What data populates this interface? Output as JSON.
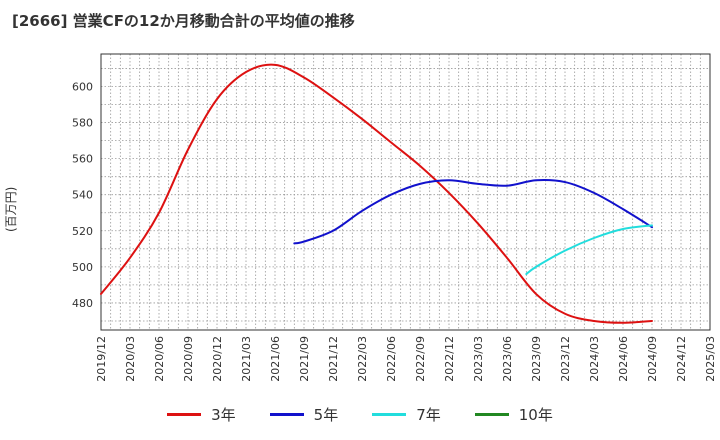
{
  "chart_data": {
    "type": "line",
    "title": "[2666]  営業CFの12か月移動合計の平均値の推移",
    "xlabel": "",
    "ylabel": "(百万円)",
    "x_ticks": [
      "2019/12",
      "2020/03",
      "2020/06",
      "2020/09",
      "2020/12",
      "2021/03",
      "2021/06",
      "2021/09",
      "2021/12",
      "2022/03",
      "2022/06",
      "2022/09",
      "2022/12",
      "2023/03",
      "2023/06",
      "2023/09",
      "2023/12",
      "2024/03",
      "2024/06",
      "2024/09",
      "2024/12",
      "2025/03"
    ],
    "y_ticks": [
      480,
      500,
      520,
      540,
      560,
      580,
      600
    ],
    "ylim": [
      465,
      618
    ],
    "grid": true,
    "legend_position": "bottom",
    "series": [
      {
        "name": "3年",
        "color": "#dd1111",
        "x": [
          "2019/12",
          "2020/03",
          "2020/06",
          "2020/09",
          "2020/12",
          "2021/03",
          "2021/06",
          "2021/09",
          "2021/12",
          "2022/03",
          "2022/06",
          "2022/09",
          "2022/12",
          "2023/03",
          "2023/06",
          "2023/09",
          "2023/12",
          "2024/03",
          "2024/06",
          "2024/09"
        ],
        "values": [
          485,
          505,
          530,
          565,
          593,
          608,
          612,
          605,
          594,
          582,
          569,
          556,
          541,
          524,
          505,
          485,
          474,
          470,
          469,
          470
        ]
      },
      {
        "name": "5年",
        "color": "#1111cc",
        "x": [
          "2021/08",
          "2021/09",
          "2021/12",
          "2022/03",
          "2022/06",
          "2022/09",
          "2022/12",
          "2023/03",
          "2023/06",
          "2023/09",
          "2023/12",
          "2024/03",
          "2024/06",
          "2024/09"
        ],
        "values": [
          513,
          514,
          520,
          531,
          540,
          546,
          548,
          546,
          545,
          548,
          547,
          541,
          532,
          522
        ]
      },
      {
        "name": "7年",
        "color": "#22dddd",
        "x": [
          "2023/08",
          "2023/09",
          "2023/12",
          "2024/03",
          "2024/06",
          "2024/09"
        ],
        "values": [
          496,
          500,
          509,
          516,
          521,
          523
        ]
      },
      {
        "name": "10年",
        "color": "#228822",
        "x": [],
        "values": []
      }
    ]
  }
}
